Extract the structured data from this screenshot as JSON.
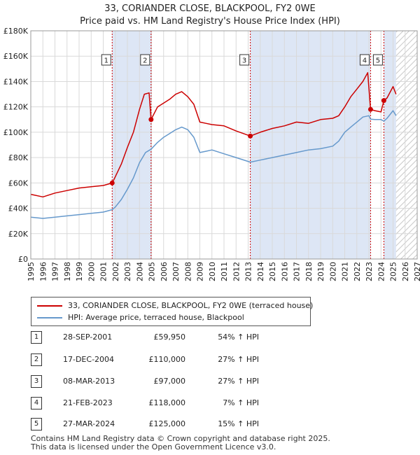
{
  "title": {
    "line1": "33, CORIANDER CLOSE, BLACKPOOL, FY2 0WE",
    "line2": "Price paid vs. HM Land Registry's House Price Index (HPI)"
  },
  "colors": {
    "price": "#cc0000",
    "hpi": "#6699cc",
    "shade": "#dde6f5",
    "grid": "#d9d9d9",
    "marker_line": "#cc0000"
  },
  "legend": {
    "price_label": "33, CORIANDER CLOSE, BLACKPOOL, FY2 0WE (terraced house)",
    "hpi_label": "HPI: Average price, terraced house, Blackpool"
  },
  "transactions": [
    {
      "num": "1",
      "date": "28-SEP-2001",
      "price": "£59,950",
      "hpi": "54% ↑ HPI"
    },
    {
      "num": "2",
      "date": "17-DEC-2004",
      "price": "£110,000",
      "hpi": "27% ↑ HPI"
    },
    {
      "num": "3",
      "date": "08-MAR-2013",
      "price": "£97,000",
      "hpi": "27% ↑ HPI"
    },
    {
      "num": "4",
      "date": "21-FEB-2023",
      "price": "£118,000",
      "hpi": "7% ↑ HPI"
    },
    {
      "num": "5",
      "date": "27-MAR-2024",
      "price": "£125,000",
      "hpi": "15% ↑ HPI"
    }
  ],
  "footer": {
    "line1": "Contains HM Land Registry data © Crown copyright and database right 2025.",
    "line2": "This data is licensed under the Open Government Licence v3.0."
  },
  "chart_data": {
    "type": "line",
    "title": "33, CORIANDER CLOSE, BLACKPOOL, FY2 0WE",
    "subtitle": "Price paid vs. HM Land Registry's House Price Index (HPI)",
    "xlabel": "",
    "ylabel": "",
    "xlim": [
      1995,
      2027
    ],
    "ylim": [
      0,
      180000
    ],
    "x_ticks": [
      1995,
      1996,
      1997,
      1998,
      1999,
      2000,
      2001,
      2002,
      2003,
      2004,
      2005,
      2006,
      2007,
      2008,
      2009,
      2010,
      2011,
      2012,
      2013,
      2014,
      2015,
      2016,
      2017,
      2018,
      2019,
      2020,
      2021,
      2022,
      2023,
      2024,
      2025,
      2026,
      2027
    ],
    "y_ticks": [
      0,
      20000,
      40000,
      60000,
      80000,
      100000,
      120000,
      140000,
      160000,
      180000
    ],
    "y_tick_labels": [
      "£0",
      "£20K",
      "£40K",
      "£60K",
      "£80K",
      "£100K",
      "£120K",
      "£140K",
      "£160K",
      "£180K"
    ],
    "grid": true,
    "legend_position": "bottom",
    "shaded_ranges": [
      [
        2001.74,
        2004.96
      ],
      [
        2013.18,
        2023.14
      ],
      [
        2024.24,
        2025.25
      ]
    ],
    "future_hatch_from": 2025.25,
    "sales": [
      {
        "label": "1",
        "x": 2001.74,
        "y": 59950
      },
      {
        "label": "2",
        "x": 2004.96,
        "y": 110000
      },
      {
        "label": "3",
        "x": 2013.18,
        "y": 97000
      },
      {
        "label": "4",
        "x": 2023.14,
        "y": 118000
      },
      {
        "label": "5",
        "x": 2024.24,
        "y": 125000
      }
    ],
    "series": [
      {
        "name": "33, CORIANDER CLOSE, BLACKPOOL, FY2 0WE (terraced house)",
        "x": [
          1995,
          1996,
          1997,
          1998,
          1999,
          2000,
          2001,
          2001.74,
          2002,
          2002.5,
          2003,
          2003.5,
          2004,
          2004.4,
          2004.8,
          2004.96,
          2005.5,
          2006,
          2006.5,
          2007,
          2007.5,
          2008,
          2008.5,
          2009,
          2009.5,
          2010,
          2011,
          2012,
          2013.18,
          2014,
          2015,
          2016,
          2017,
          2018,
          2019,
          2020,
          2020.5,
          2021,
          2021.5,
          2022,
          2022.5,
          2022.9,
          2023.14,
          2023.5,
          2024,
          2024.24,
          2024.5,
          2025,
          2025.25
        ],
        "values": [
          51000,
          49000,
          52000,
          54000,
          56000,
          57000,
          58000,
          59950,
          65000,
          75000,
          88000,
          100000,
          118000,
          130000,
          131000,
          110000,
          120000,
          123000,
          126000,
          130000,
          132000,
          128000,
          122000,
          108000,
          107000,
          106000,
          105000,
          101000,
          97000,
          100000,
          103000,
          105000,
          108000,
          107000,
          110000,
          111000,
          113000,
          120000,
          128000,
          134000,
          140000,
          147000,
          118000,
          117000,
          116000,
          125000,
          127000,
          136000,
          130000
        ]
      },
      {
        "name": "HPI: Average price, terraced house, Blackpool",
        "x": [
          1995,
          1996,
          1997,
          1998,
          1999,
          2000,
          2001,
          2001.74,
          2002,
          2002.5,
          2003,
          2003.5,
          2004,
          2004.5,
          2004.96,
          2005.5,
          2006,
          2006.5,
          2007,
          2007.5,
          2008,
          2008.5,
          2009,
          2009.5,
          2010,
          2011,
          2012,
          2013.18,
          2014,
          2015,
          2016,
          2017,
          2018,
          2019,
          2020,
          2020.5,
          2021,
          2021.5,
          2022,
          2022.5,
          2023,
          2023.14,
          2023.5,
          2024,
          2024.24,
          2024.5,
          2025,
          2025.25
        ],
        "values": [
          33000,
          32000,
          33000,
          34000,
          35000,
          36000,
          37000,
          38900,
          41000,
          47000,
          55000,
          64000,
          76000,
          84000,
          86600,
          92000,
          96000,
          99000,
          102000,
          104000,
          102000,
          96000,
          84000,
          85000,
          86000,
          83000,
          80000,
          76400,
          78000,
          80000,
          82000,
          84000,
          86000,
          87000,
          89000,
          93000,
          100000,
          104000,
          108000,
          112000,
          113000,
          110300,
          110000,
          110000,
          108700,
          111000,
          117000,
          113000
        ]
      }
    ]
  }
}
